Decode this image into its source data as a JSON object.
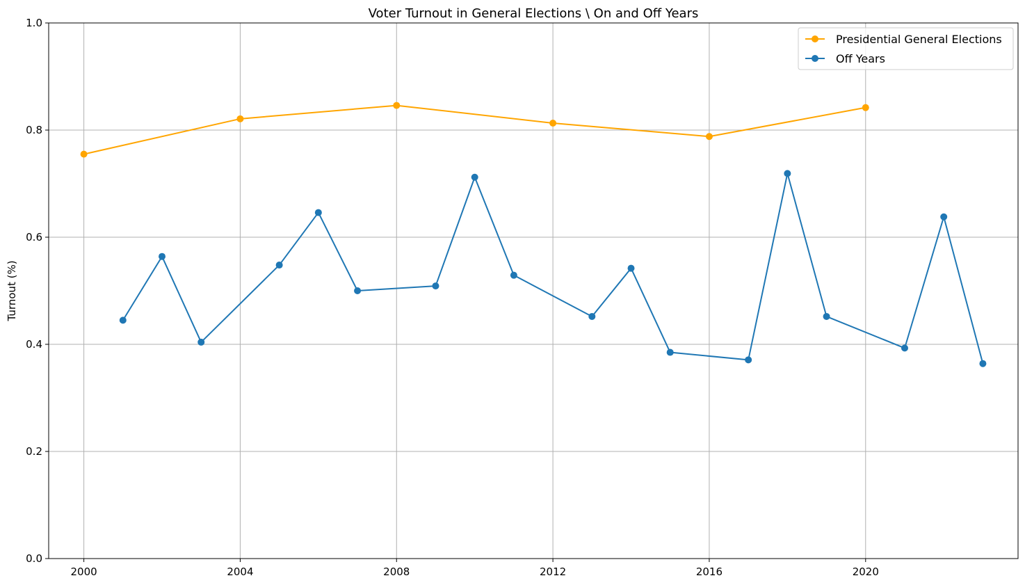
{
  "chart_data": {
    "type": "line",
    "title": "Voter Turnout in General Elections \\ On and Off Years",
    "xlabel": "",
    "ylabel": "Turnout (%)",
    "xlim": [
      1999.1,
      2023.9
    ],
    "ylim": [
      0,
      1.0
    ],
    "x_ticks": [
      2000,
      2004,
      2008,
      2012,
      2016,
      2020
    ],
    "y_ticks": [
      0.0,
      0.2,
      0.4,
      0.6,
      0.8,
      1.0
    ],
    "y_tick_labels": [
      "0.0",
      "0.2",
      "0.4",
      "0.6",
      "0.8",
      "1.0"
    ],
    "grid": true,
    "legend_position": "top-right",
    "series": [
      {
        "name": "Presidential General Elections",
        "color": "#FFA500",
        "marker": "circle",
        "x": [
          2000,
          2004,
          2008,
          2012,
          2016,
          2020
        ],
        "y": [
          0.755,
          0.821,
          0.846,
          0.813,
          0.788,
          0.842
        ]
      },
      {
        "name": "Off Years",
        "color": "#1F77B4",
        "marker": "circle",
        "x": [
          2001,
          2002,
          2003,
          2005,
          2006,
          2007,
          2009,
          2010,
          2011,
          2013,
          2014,
          2015,
          2017,
          2018,
          2019,
          2021,
          2022,
          2023
        ],
        "y": [
          0.445,
          0.564,
          0.404,
          0.548,
          0.646,
          0.5,
          0.509,
          0.712,
          0.529,
          0.452,
          0.542,
          0.385,
          0.371,
          0.719,
          0.452,
          0.393,
          0.638,
          0.364
        ]
      }
    ]
  }
}
